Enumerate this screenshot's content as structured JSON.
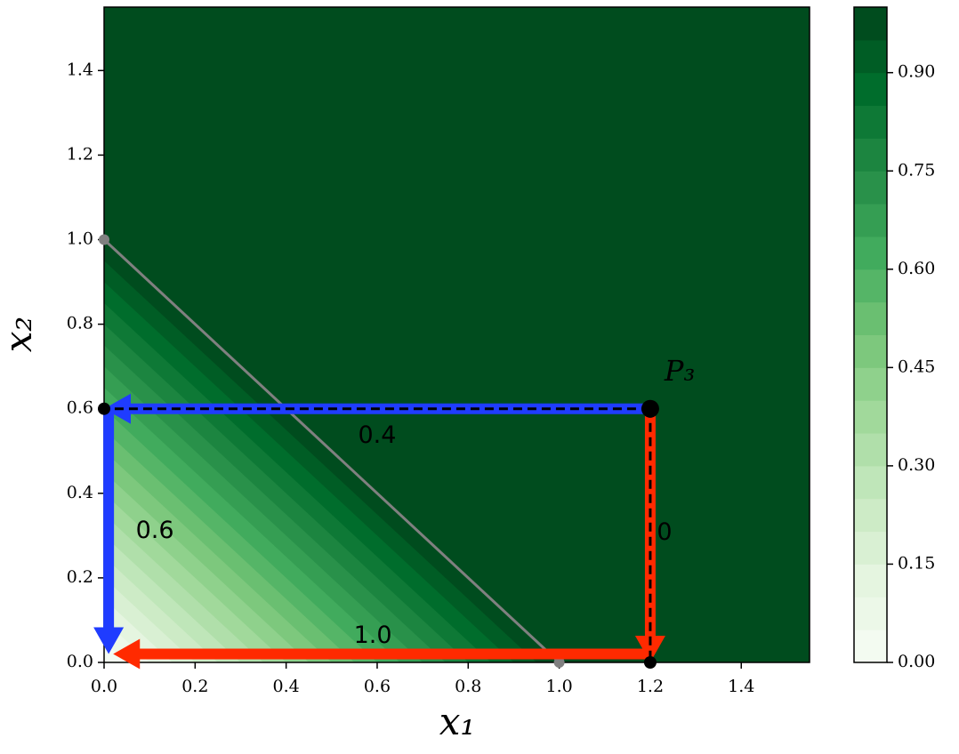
{
  "chart_data": {
    "type": "contourf",
    "xlabel": "x₁",
    "ylabel": "x₂",
    "xlim": [
      0,
      1.55
    ],
    "ylim": [
      0,
      1.55
    ],
    "xticks": [
      {
        "value": 0,
        "label": "0.0"
      },
      0.2,
      0.4,
      0.6,
      0.8,
      {
        "value": 1,
        "label": "1.0"
      },
      1.2,
      1.4
    ],
    "yticks": [
      {
        "value": 0,
        "label": "0.0"
      },
      0.2,
      0.4,
      0.6,
      0.8,
      {
        "value": 1,
        "label": "1.0"
      },
      1.2,
      1.4
    ],
    "levels": [
      0,
      0.05,
      0.1,
      0.15,
      0.2,
      0.25,
      0.3,
      0.35,
      0.4,
      0.45,
      0.5,
      0.55,
      0.6,
      0.65,
      0.7,
      0.75,
      0.8,
      0.85,
      0.9,
      0.95,
      1.0
    ],
    "colormap": [
      "#f7fcf5",
      "#e5f5e0",
      "#c7e9c0",
      "#a1d99b",
      "#74c476",
      "#41ab5d",
      "#238b45",
      "#006d2c",
      "#00441b"
    ],
    "colorbar": {
      "lim": [
        0,
        1
      ],
      "ticks": [
        {
          "value": 0,
          "label": "0.00"
        },
        0.15,
        {
          "value": 0.3,
          "label": "0.30"
        },
        0.45,
        {
          "value": 0.6,
          "label": "0.60"
        },
        0.75,
        {
          "value": 0.9,
          "label": "0.90"
        }
      ]
    },
    "segment": {
      "x": [
        0,
        1
      ],
      "y": [
        1,
        0
      ],
      "color": "#808080"
    },
    "dashed": [
      {
        "x": [
          1.2,
          0
        ],
        "y": [
          0.6,
          0.6
        ]
      },
      {
        "x": [
          1.2,
          1.2
        ],
        "y": [
          0.6,
          0
        ]
      }
    ],
    "arrows": [
      {
        "from": [
          1.2,
          0.6
        ],
        "to": [
          0,
          0.6
        ],
        "color": "#1f3cff",
        "label": "0.4"
      },
      {
        "from": [
          0.01,
          0.6
        ],
        "to": [
          0.01,
          0.02
        ],
        "color": "#1f3cff",
        "label": "0.6"
      },
      {
        "from": [
          1.2,
          0.6
        ],
        "to": [
          1.2,
          0
        ],
        "color": "#ff2a00",
        "label": "0"
      },
      {
        "from": [
          1.2,
          0.02
        ],
        "to": [
          0.02,
          0.02
        ],
        "color": "#ff2a00",
        "label": "1.0"
      }
    ],
    "points": [
      {
        "x": 1.2,
        "y": 0.6,
        "label": "P₃"
      },
      {
        "x": 0,
        "y": 0.6
      },
      {
        "x": 1.2,
        "y": 0
      }
    ]
  }
}
